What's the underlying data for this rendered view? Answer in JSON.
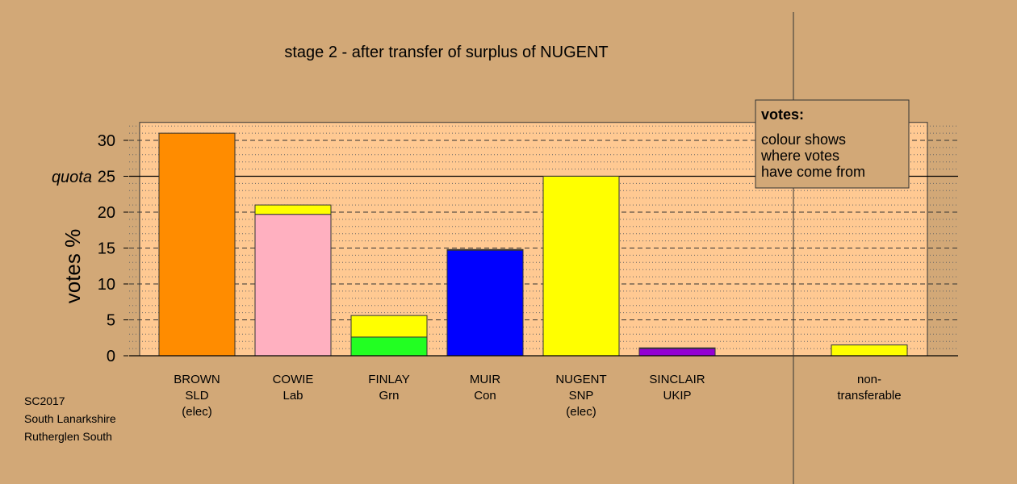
{
  "chart_data": {
    "type": "bar",
    "title": "stage 2 - after transfer of surplus of NUGENT",
    "ylabel": "votes %",
    "ylim": [
      0,
      32.5
    ],
    "yticks": [
      0,
      5,
      10,
      15,
      20,
      25,
      30
    ],
    "quota": 25,
    "quota_label": "quota",
    "grid": true,
    "categories": [
      {
        "lines": [
          "BROWN",
          "SLD",
          "(elec)"
        ]
      },
      {
        "lines": [
          "COWIE",
          "Lab"
        ]
      },
      {
        "lines": [
          "FINLAY",
          "Grn"
        ]
      },
      {
        "lines": [
          "MUIR",
          "Con"
        ]
      },
      {
        "lines": [
          "NUGENT",
          "SNP",
          "(elec)"
        ]
      },
      {
        "lines": [
          "SINCLAIR",
          "UKIP"
        ]
      },
      {
        "lines": [
          "non-",
          "transferable"
        ]
      }
    ],
    "bars": [
      {
        "segments": [
          {
            "value": 31.0,
            "color": "#ff8c00"
          }
        ]
      },
      {
        "segments": [
          {
            "value": 19.7,
            "color": "#ffb0c0"
          },
          {
            "value": 1.3,
            "color": "#ffff00"
          }
        ]
      },
      {
        "segments": [
          {
            "value": 2.6,
            "color": "#22ff22"
          },
          {
            "value": 3.0,
            "color": "#ffff00"
          }
        ]
      },
      {
        "segments": [
          {
            "value": 14.7,
            "color": "#0000ff"
          },
          {
            "value": 0.1,
            "color": "#ffff00"
          }
        ]
      },
      {
        "segments": [
          {
            "value": 25.0,
            "color": "#ffff00"
          }
        ]
      },
      {
        "segments": [
          {
            "value": 1.0,
            "color": "#9400d3"
          },
          {
            "value": 0.1,
            "color": "#ffff00"
          }
        ]
      },
      {
        "segments": [
          {
            "value": 1.5,
            "color": "#ffff00"
          }
        ]
      }
    ],
    "legend": {
      "title": "votes:",
      "lines": [
        "colour shows",
        "where votes",
        "have come from"
      ],
      "placement": "top-right"
    }
  },
  "caption": [
    "SC2017",
    "South Lanarkshire",
    "Rutherglen South"
  ],
  "colors": {
    "background": "#d2a877",
    "plot_area": "#ffc992"
  }
}
